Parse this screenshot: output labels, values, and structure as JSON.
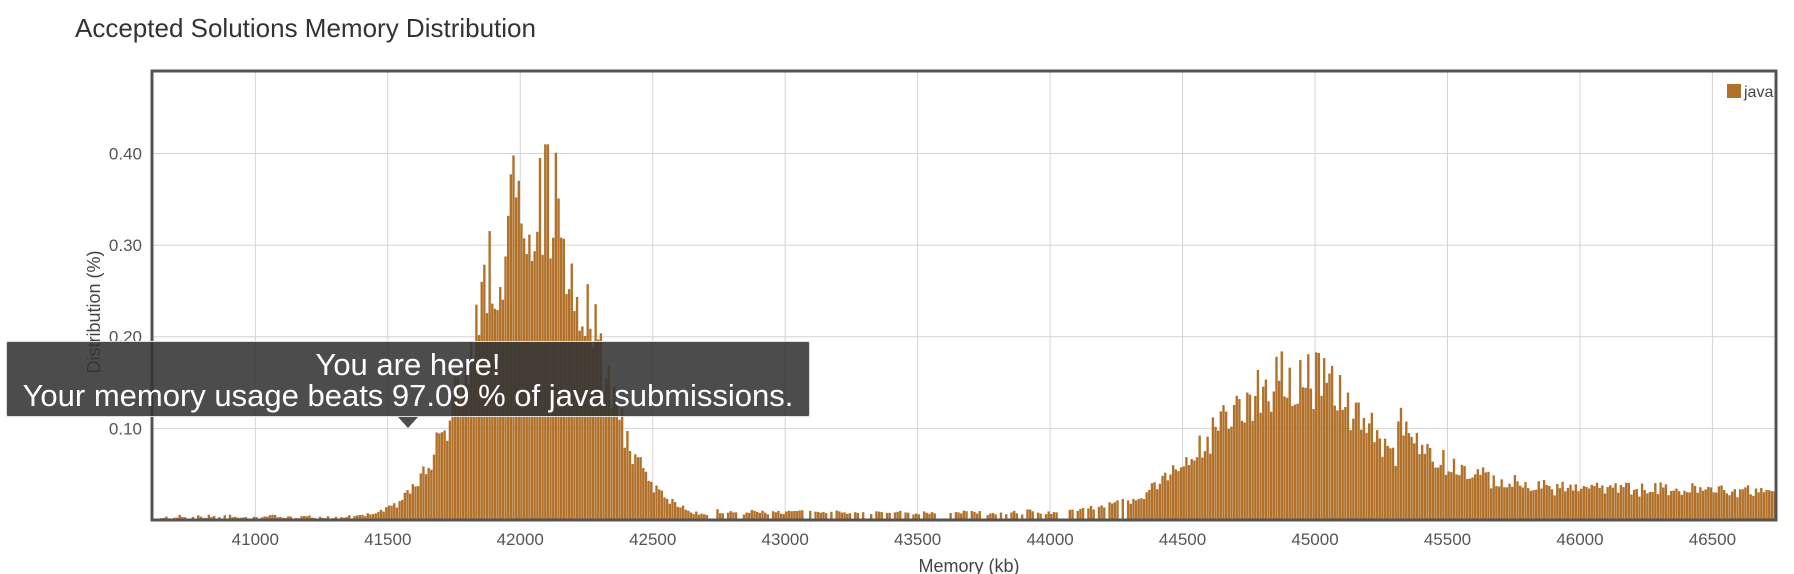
{
  "page": {
    "title": "Accepted Solutions Memory Distribution"
  },
  "tooltip": {
    "line1": "You are here!",
    "line2": "Your memory usage beats 97.09 % of java submissions."
  },
  "colors": {
    "bar": "#b1712a",
    "grid": "#d4d4d4",
    "frame": "#555555",
    "tooltip_bg": "#333333"
  },
  "chart_data": {
    "type": "bar",
    "title": "",
    "xlabel": "Memory (kb)",
    "ylabel": "Distribution (%)",
    "xlim": [
      40610,
      46740
    ],
    "ylim": [
      0,
      0.49
    ],
    "x_ticks": [
      41000,
      41500,
      42000,
      42500,
      43000,
      43500,
      44000,
      44500,
      45000,
      45500,
      46000,
      46500
    ],
    "y_ticks": [
      0.1,
      0.2,
      0.3,
      0.4
    ],
    "y_tick_labels": [
      "0.10",
      "0.20",
      "0.30",
      "0.40"
    ],
    "grid": true,
    "legend_position": "top-right",
    "series": [
      {
        "name": "java",
        "color": "#b1712a",
        "bin_width_kb": 10,
        "x_range": [
          40640,
          46730
        ],
        "description_of_shape": "bimodal histogram",
        "peaks": [
          {
            "center": 42050,
            "height": 0.36,
            "spread": 210
          },
          {
            "center": 44920,
            "height": 0.155,
            "spread": 300
          }
        ],
        "max_value": 0.41,
        "highlight_x": 41580
      }
    ]
  }
}
